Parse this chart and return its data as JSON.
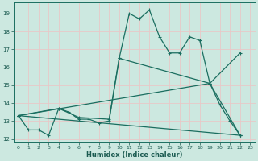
{
  "xlabel": "Humidex (Indice chaleur)",
  "xlim": [
    -0.5,
    23.5
  ],
  "ylim": [
    11.8,
    19.6
  ],
  "yticks": [
    12,
    13,
    14,
    15,
    16,
    17,
    18,
    19
  ],
  "xticks": [
    0,
    1,
    2,
    3,
    4,
    5,
    6,
    7,
    8,
    9,
    10,
    11,
    12,
    13,
    14,
    15,
    16,
    17,
    18,
    19,
    20,
    21,
    22,
    23
  ],
  "bg_color": "#cce8e0",
  "grid_color": "#e8c8c8",
  "line_color": "#1a6e60",
  "line1_x": [
    0,
    1,
    2,
    3,
    4,
    5,
    6,
    7,
    8,
    9,
    10,
    11,
    12,
    13,
    14,
    15,
    16,
    17,
    18,
    19,
    20,
    21,
    22
  ],
  "line1_y": [
    13.3,
    12.5,
    12.5,
    12.2,
    13.7,
    13.5,
    13.1,
    13.1,
    12.9,
    13.0,
    16.5,
    19.0,
    18.7,
    19.2,
    17.7,
    16.8,
    16.8,
    17.7,
    17.5,
    15.1,
    13.9,
    13.0,
    12.2
  ],
  "line2_x": [
    0,
    4,
    6,
    9,
    10,
    19,
    22
  ],
  "line2_y": [
    13.3,
    13.7,
    13.2,
    13.1,
    16.5,
    15.1,
    12.2
  ],
  "line3_x": [
    0,
    19,
    22
  ],
  "line3_y": [
    13.3,
    15.1,
    16.8
  ],
  "line4_x": [
    0,
    22
  ],
  "line4_y": [
    13.3,
    12.2
  ]
}
